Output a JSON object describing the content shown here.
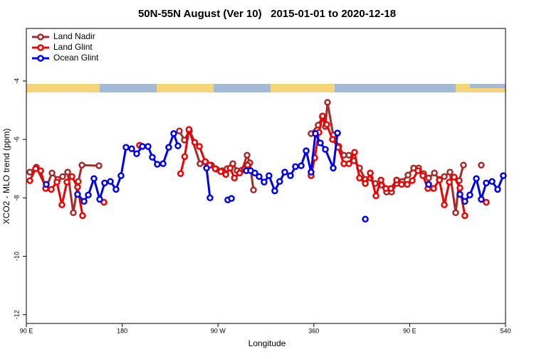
{
  "chart_data": {
    "type": "line",
    "title": "50N-55N August (Ver 10)   2015-01-01 to 2020-12-18",
    "x_label": "Longitude",
    "y_label": "XCO2 - MLO trend (ppm)",
    "xlim": [
      90,
      540
    ],
    "ylim": [
      -12.3,
      -2.2
    ],
    "xticks": [
      {
        "value": 90,
        "label": "90 E"
      },
      180,
      {
        "value": 270,
        "label": "90 W"
      },
      360,
      {
        "value": 450,
        "label": "90 E"
      },
      540
    ],
    "yticks": [
      -12,
      -10,
      -8,
      -6,
      -4
    ],
    "legend": "upper left",
    "series": [
      {
        "name": "Land Nadir",
        "color": "#a52a2a",
        "x": [
          93.3,
          99.4,
          108.7,
          114.1,
          119.4,
          124.1,
          128.8,
          134.1,
          138.8,
          142.2,
          158.2,
          null,
          233.7,
          238.4,
          243.1,
          253.1,
          258.5,
          263.8,
          268.5,
          273.9,
          278.5,
          283.9,
          287.9,
          292.6,
          297.3,
          299.9,
          303.3,
          null,
          357.4,
          364.1,
          368.1,
          370.8,
          372.8,
          378.2,
          383.5,
          388.2,
          392.9,
          397.6,
          402.9,
          408.3,
          413.0,
          417.6,
          423.6,
          428.3,
          433.0,
          437.7,
          443.0,
          448.4,
          453.7,
          458.4,
          463.1,
          467.8,
          473.2,
          477.9,
          482.5,
          487.8,
          493.2,
          496.5,
          500.5,
          null,
          517.2
        ],
        "values": [
          -7.12,
          -6.95,
          -7.66,
          -7.15,
          -7.37,
          -7.27,
          -7.12,
          -8.51,
          -7.44,
          -6.88,
          -6.9,
          null,
          -5.71,
          -6.02,
          -5.71,
          -6.83,
          -6.78,
          -6.88,
          -7.02,
          -7.07,
          -7.0,
          -6.83,
          -7.07,
          -7.05,
          -6.54,
          -6.8,
          -7.73,
          null,
          -5.8,
          -5.51,
          -5.24,
          -5.56,
          -4.73,
          -5.85,
          -6.24,
          -6.54,
          -6.54,
          -6.73,
          -6.98,
          -7.37,
          -7.32,
          -7.51,
          -7.56,
          -7.8,
          -7.8,
          -7.51,
          -7.44,
          -7.22,
          -6.98,
          -6.98,
          -7.17,
          -7.32,
          -7.15,
          -7.37,
          -7.27,
          -7.12,
          -8.51,
          -7.41,
          -6.88,
          null,
          -6.88
        ]
      },
      {
        "name": "Land Glint",
        "color": "#ee0000",
        "x": [
          93.3,
          98.7,
          103.4,
          108.1,
          113.4,
          118.7,
          123.4,
          128.1,
          132.8,
          138.1,
          142.8,
          null,
          162.9,
          null,
          196.3,
          null,
          234.9,
          238.7,
          242.7,
          248.1,
          252.5,
          258.0,
          262.1,
          267.4,
          272.6,
          277.3,
          281.4,
          285.4,
          290.3,
          295.0,
          297.8,
          null,
          357.4,
          360.8,
          364.8,
          368.1,
          372.1,
          377.5,
          382.8,
          388.2,
          392.9,
          398.2,
          402.9,
          408.3,
          413.0,
          418.3,
          423.0,
          427.7,
          432.3,
          437.7,
          442.4,
          447.7,
          452.4,
          457.7,
          462.4,
          467.1,
          472.4,
          477.9,
          482.5,
          487.2,
          491.8,
          497.2,
          501.8,
          null,
          521.9
        ],
        "values": [
          -7.41,
          -7.0,
          -7.07,
          -7.68,
          -7.71,
          -7.46,
          -8.24,
          -7.46,
          -7.27,
          -7.63,
          -8.61,
          null,
          -8.15,
          null,
          -6.2,
          null,
          -7.17,
          -6.59,
          -5.66,
          -6.1,
          -6.24,
          -6.76,
          -6.88,
          -7.0,
          -7.1,
          -7.2,
          -6.98,
          -7.32,
          -7.15,
          -7.02,
          -6.88,
          null,
          -7.24,
          -6.63,
          -5.76,
          -5.2,
          -5.49,
          -6.0,
          -6.27,
          -6.83,
          -6.83,
          -6.44,
          -7.32,
          -7.51,
          -7.15,
          -7.93,
          -7.39,
          -7.68,
          -7.68,
          -7.39,
          -7.54,
          -7.54,
          -7.41,
          -7.07,
          -7.24,
          -7.68,
          -7.68,
          -7.39,
          -8.24,
          -7.46,
          -7.29,
          -7.66,
          -8.61,
          null,
          -8.15
        ]
      },
      {
        "name": "Ocean Glint",
        "color": "#0000ee",
        "x": [
          108.7,
          null,
          138.1,
          144.2,
          148.2,
          153.5,
          158.9,
          163.5,
          168.9,
          174.2,
          178.9,
          183.6,
          188.9,
          193.6,
          199.0,
          204.3,
          208.3,
          213.0,
          218.4,
          223.7,
          228.4,
          232.4,
          null,
          259.2,
          262.5,
          null,
          279.2,
          282.6,
          null,
          296.6,
          300.6,
          304.6,
          308.6,
          313.3,
          317.9,
          323.3,
          327.9,
          332.7,
          338.0,
          342.7,
          348.1,
          352.8,
          357.4,
          361.5,
          366.1,
          370.8,
          378.2,
          382.2,
          null,
          408.3,
          null,
          467.8,
          null,
          497.2,
          501.8,
          506.5,
          512.6,
          517.2,
          521.9,
          527.3,
          532.6,
          537.9
        ],
        "values": [
          -7.54,
          null,
          -7.88,
          -8.12,
          -7.9,
          -7.34,
          -8.05,
          -7.49,
          -7.44,
          -7.71,
          -7.24,
          -6.27,
          -6.32,
          -6.49,
          -6.24,
          -6.24,
          -6.61,
          -6.85,
          -6.83,
          -6.27,
          -5.8,
          -6.22,
          null,
          -6.98,
          -8.0,
          null,
          -8.07,
          -8.02,
          null,
          -7.07,
          -7.07,
          -7.15,
          -7.27,
          -7.46,
          -7.24,
          -7.76,
          -7.44,
          -7.12,
          -7.24,
          -6.93,
          -6.9,
          -6.39,
          -7.12,
          -5.8,
          -6.12,
          -6.34,
          -6.98,
          -5.78,
          null,
          -8.73,
          null,
          -7.54,
          null,
          -7.88,
          -8.12,
          -7.9,
          -7.34,
          -8.05,
          -7.49,
          -7.44,
          -7.71,
          -7.24
        ]
      }
    ]
  }
}
